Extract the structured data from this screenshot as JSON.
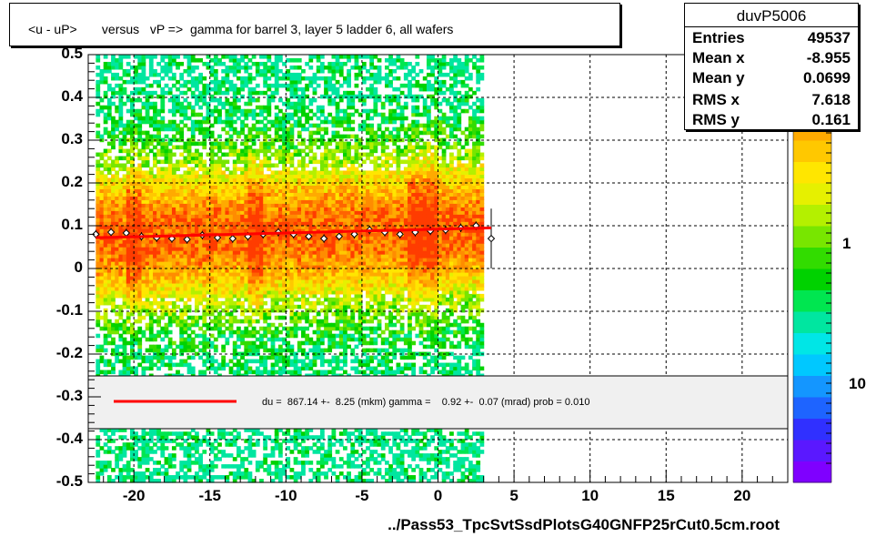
{
  "chart_data": {
    "type": "scatter",
    "title": "<u - uP>       versus   vP =>  gamma for barrel 3, layer 5 ladder 6, all wafers",
    "xlabel": "../Pass53_TpcSvtSsdPlotsG40GNFP25rCut0.5cm.root",
    "ylabel": "",
    "xlim": [
      -23,
      23
    ],
    "ylim": [
      -0.5,
      0.5
    ],
    "x_ticks": [
      "-20",
      "-15",
      "-10",
      "-5",
      "0",
      "5",
      "10",
      "15",
      "20"
    ],
    "y_ticks": [
      "0.5",
      "0.4",
      "0.3",
      "0.2",
      "0.1",
      "0",
      "-0.1",
      "-0.2",
      "-0.3",
      "-0.4",
      "-0.5"
    ],
    "z_ticks": [
      "1",
      "10"
    ],
    "grid": true,
    "colz_palette": [
      "#7f00ff",
      "#5a18ff",
      "#3030ff",
      "#1e64ff",
      "#1496ff",
      "#00c8ff",
      "#00e6e6",
      "#00e6a0",
      "#00e650",
      "#00d200",
      "#32dc00",
      "#78e600",
      "#b4f000",
      "#e6f000",
      "#ffe600",
      "#ffc800",
      "#ffaa00",
      "#ff8c00",
      "#ff6400",
      "#ff3c00"
    ],
    "profile_x": [
      -22.5,
      -21.5,
      -20.5,
      -19.5,
      -18.5,
      -17.5,
      -16.5,
      -15.5,
      -14.5,
      -13.5,
      -12.5,
      -11.5,
      -10.5,
      -9.5,
      -8.5,
      -7.5,
      -6.5,
      -5.5,
      -4.5,
      -3.5,
      -2.5,
      -1.5,
      -0.5,
      0.5,
      1.5,
      2.5,
      3.5
    ],
    "profile_y": [
      0.08,
      0.085,
      0.083,
      0.075,
      0.072,
      0.07,
      0.068,
      0.078,
      0.072,
      0.07,
      0.075,
      0.08,
      0.085,
      0.08,
      0.075,
      0.07,
      0.075,
      0.08,
      0.09,
      0.085,
      0.08,
      0.085,
      0.088,
      0.09,
      0.095,
      0.1,
      0.07
    ],
    "profile_err": [
      0.01,
      0.01,
      0.01,
      0.01,
      0.01,
      0.01,
      0.01,
      0.01,
      0.01,
      0.01,
      0.01,
      0.01,
      0.01,
      0.01,
      0.01,
      0.01,
      0.01,
      0.01,
      0.01,
      0.01,
      0.01,
      0.01,
      0.01,
      0.01,
      0.01,
      0.01,
      0.07
    ],
    "fit_line": {
      "x": [
        -22.5,
        3.5
      ],
      "y": [
        0.072,
        0.095
      ],
      "color": "#ff0000"
    }
  },
  "stats": {
    "title": "duvP5006",
    "rows": [
      {
        "key": "Entries",
        "value": "49537"
      },
      {
        "key": "Mean x",
        "value": "-8.955"
      },
      {
        "key": "Mean y",
        "value": "0.0699"
      },
      {
        "key": "RMS x",
        "value": "7.618"
      },
      {
        "key": "RMS y",
        "value": "0.161"
      }
    ]
  },
  "fit_legend": "du =  867.14 +-  8.25 (mkm) gamma =    0.92 +-  0.07 (mrad) prob = 0.010"
}
